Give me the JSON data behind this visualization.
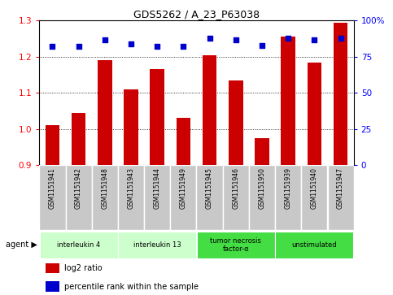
{
  "title": "GDS5262 / A_23_P63038",
  "samples": [
    "GSM1151941",
    "GSM1151942",
    "GSM1151948",
    "GSM1151943",
    "GSM1151944",
    "GSM1151949",
    "GSM1151945",
    "GSM1151946",
    "GSM1151950",
    "GSM1151939",
    "GSM1151940",
    "GSM1151947"
  ],
  "log2_ratio": [
    1.01,
    1.045,
    1.19,
    1.11,
    1.165,
    1.03,
    1.205,
    1.135,
    0.975,
    1.255,
    1.185,
    1.295
  ],
  "percentile": [
    82,
    82,
    87,
    84,
    82,
    82,
    88,
    87,
    83,
    88,
    87,
    88
  ],
  "ylim_left": [
    0.9,
    1.3
  ],
  "ylim_right": [
    0,
    100
  ],
  "yticks_left": [
    0.9,
    1.0,
    1.1,
    1.2,
    1.3
  ],
  "yticks_right": [
    0,
    25,
    50,
    75,
    100
  ],
  "bar_color": "#cc0000",
  "dot_color": "#0000cc",
  "bar_width": 0.55,
  "groups": [
    {
      "label": "interleukin 4",
      "start": 0,
      "end": 3,
      "color": "#ccffcc"
    },
    {
      "label": "interleukin 13",
      "start": 3,
      "end": 6,
      "color": "#ccffcc"
    },
    {
      "label": "tumor necrosis\nfactor-α",
      "start": 6,
      "end": 9,
      "color": "#44dd44"
    },
    {
      "label": "unstimulated",
      "start": 9,
      "end": 12,
      "color": "#44dd44"
    }
  ],
  "agent_label": "agent",
  "legend_bar_label": "log2 ratio",
  "legend_dot_label": "percentile rank within the sample",
  "sample_bg_color": "#c8c8c8",
  "fig_width": 4.83,
  "fig_height": 3.63,
  "dpi": 100
}
